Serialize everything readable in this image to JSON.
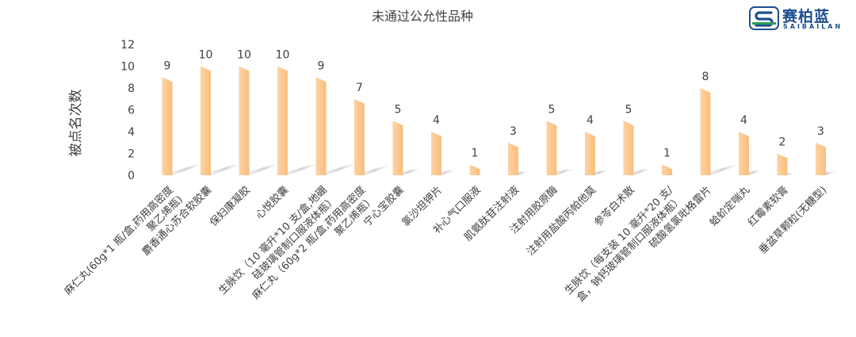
{
  "logo": {
    "name_cn": "赛柏蓝",
    "name_en": "SAIBAILAN"
  },
  "chart_data": {
    "type": "bar",
    "title": "未通过公允性品种",
    "ylabel": "被点名次数",
    "xlabel": "",
    "ylim": [
      0,
      12
    ],
    "yticks": [
      0,
      2,
      4,
      6,
      8,
      10,
      12
    ],
    "grid": false,
    "legend": "none",
    "bar_color": "#fcc98f",
    "categories": [
      "麻仁丸(60g*1 瓶/盒,药用高密度聚乙烯瓶)",
      "麝香通心苏合软胶囊",
      "保妇康凝胶",
      "心悦胶囊",
      "生脉饮（10 毫升*10 支/盒,地硼硅玻璃管制口服液体瓶）",
      "麻仁丸（60g*2 瓶/盒,药用高密度聚乙烯瓶）",
      "宁心宝胶囊",
      "氯沙坦钾片",
      "补心气口服液",
      "肌氨肽苷注射液",
      "注射用胶原酶",
      "注射用盐酸丙帕他莫",
      "参苓白术散",
      "生脉饮（每支装 10 毫升*20 支/盒，钠钙玻璃管制口服液体瓶）",
      "硫酸氢氯吡格雷片",
      "蛤蚧定喘丸",
      "红霉素软膏",
      "垂盆草颗粒(无糖型)"
    ],
    "label_lines": [
      [
        "麻仁丸(60g*1 瓶/盒,药用高密度",
        "聚乙烯瓶)"
      ],
      [
        "麝香通心苏合软胶囊"
      ],
      [
        "保妇康凝胶"
      ],
      [
        "心悦胶囊"
      ],
      [
        "生脉饮（10 毫升*10 支/盒,地硼",
        "硅玻璃管制口服液体瓶）"
      ],
      [
        "麻仁丸（60g*2 瓶/盒,药用高密度",
        "聚乙烯瓶）"
      ],
      [
        "宁心宝胶囊"
      ],
      [
        "氯沙坦钾片"
      ],
      [
        "补心气口服液"
      ],
      [
        "肌氨肽苷注射液"
      ],
      [
        "注射用胶原酶"
      ],
      [
        "注射用盐酸丙帕他莫"
      ],
      [
        "参苓白术散"
      ],
      [
        "生脉饮（每支装 10 毫升*20 支/",
        "盒，钠钙玻璃管制口服液体瓶）"
      ],
      [
        "硫酸氢氯吡格雷片"
      ],
      [
        "蛤蚧定喘丸"
      ],
      [
        "红霉素软膏"
      ],
      [
        "垂盆草颗粒(无糖型)"
      ]
    ],
    "values": [
      9,
      10,
      10,
      10,
      9,
      7,
      5,
      4,
      1,
      3,
      5,
      4,
      5,
      1,
      8,
      4,
      2,
      3
    ],
    "data_labels": [
      "9",
      "10",
      "10",
      "10",
      "9",
      "7",
      "5",
      "4",
      "1",
      "3",
      "5",
      "4",
      "5",
      "1",
      "8",
      "4",
      "2",
      "3"
    ]
  }
}
